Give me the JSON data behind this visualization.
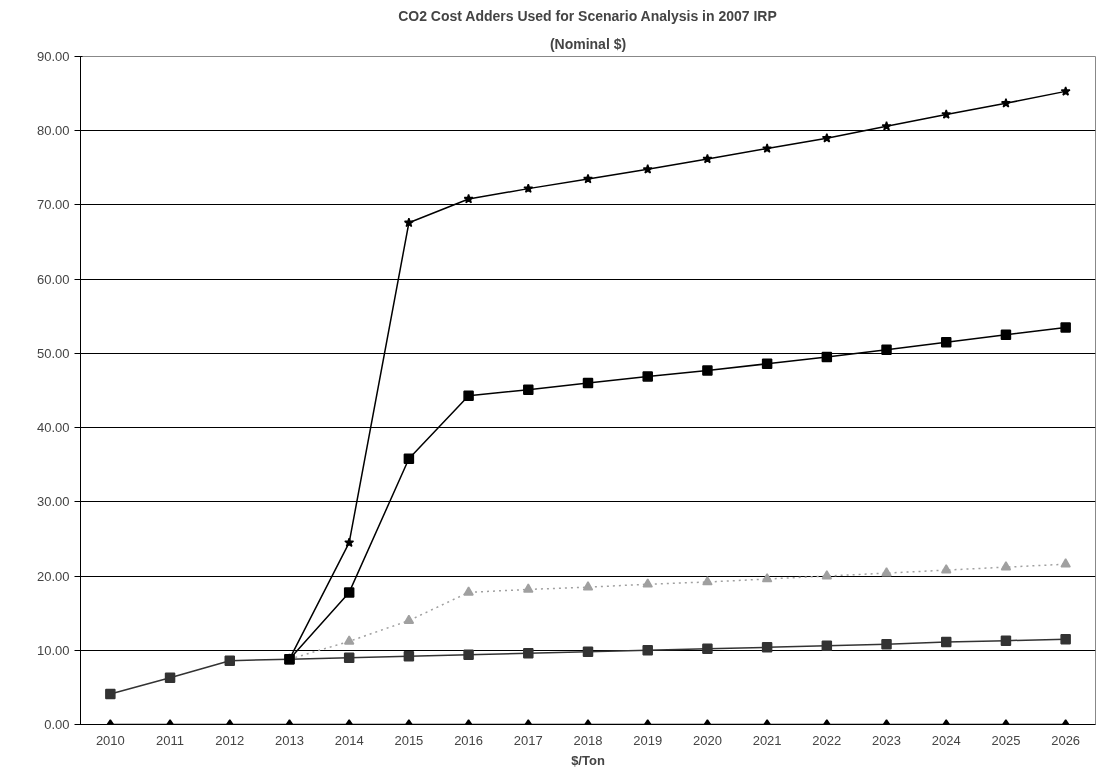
{
  "chart_data": {
    "type": "line",
    "title": "CO2 Cost Adders Used for Scenario Analysis in 2007 IRP",
    "subtitle": "(Nominal $)",
    "xlabel": "$/Ton",
    "categories": [
      "2010",
      "2011",
      "2012",
      "2013",
      "2014",
      "2015",
      "2016",
      "2017",
      "2018",
      "2019",
      "2020",
      "2021",
      "2022",
      "2023",
      "2024",
      "2025",
      "2026"
    ],
    "ylim": [
      0,
      90
    ],
    "yticks": [
      {
        "value": 0,
        "label": "0.00"
      },
      {
        "value": 10,
        "label": "10.00"
      },
      {
        "value": 20,
        "label": "20.00"
      },
      {
        "value": 30,
        "label": "30.00"
      },
      {
        "value": 40,
        "label": "40.00"
      },
      {
        "value": 50,
        "label": "50.00"
      },
      {
        "value": 60,
        "label": "60.00"
      },
      {
        "value": 70,
        "label": "70.00"
      },
      {
        "value": 80,
        "label": "80.00"
      },
      {
        "value": 90,
        "label": "90.00"
      }
    ],
    "grid": "y",
    "series": [
      {
        "color": "#000000",
        "marker": "diamond",
        "line_style": "solid",
        "values": [
          0,
          0,
          0,
          0,
          0,
          0,
          0,
          0,
          0,
          0,
          0,
          0,
          0,
          0,
          0,
          0,
          0
        ]
      },
      {
        "color": "#333333",
        "marker": "square",
        "line_style": "solid",
        "values": [
          4.1,
          6.3,
          8.6,
          8.8,
          9.0,
          9.2,
          9.4,
          9.6,
          9.8,
          10.0,
          10.2,
          10.4,
          10.6,
          10.8,
          11.1,
          11.3,
          11.5
        ]
      },
      {
        "color": "#a0a0a0",
        "marker": "triangle",
        "line_style": "dotted",
        "values": [
          null,
          null,
          null,
          8.8,
          11.2,
          14.0,
          17.8,
          18.2,
          18.5,
          18.9,
          19.2,
          19.6,
          20.0,
          20.4,
          20.8,
          21.2,
          21.6
        ]
      },
      {
        "color": "#000000",
        "marker": "square",
        "line_style": "solid",
        "values": [
          null,
          null,
          null,
          8.8,
          17.8,
          35.8,
          44.3,
          45.1,
          46.0,
          46.9,
          47.7,
          48.6,
          49.5,
          50.5,
          51.5,
          52.5,
          53.5
        ]
      },
      {
        "color": "#000000",
        "marker": "star",
        "line_style": "solid",
        "values": [
          null,
          null,
          null,
          8.8,
          24.5,
          67.6,
          70.8,
          72.2,
          73.5,
          74.8,
          76.2,
          77.6,
          79.0,
          80.6,
          82.2,
          83.7,
          85.3
        ]
      }
    ]
  }
}
